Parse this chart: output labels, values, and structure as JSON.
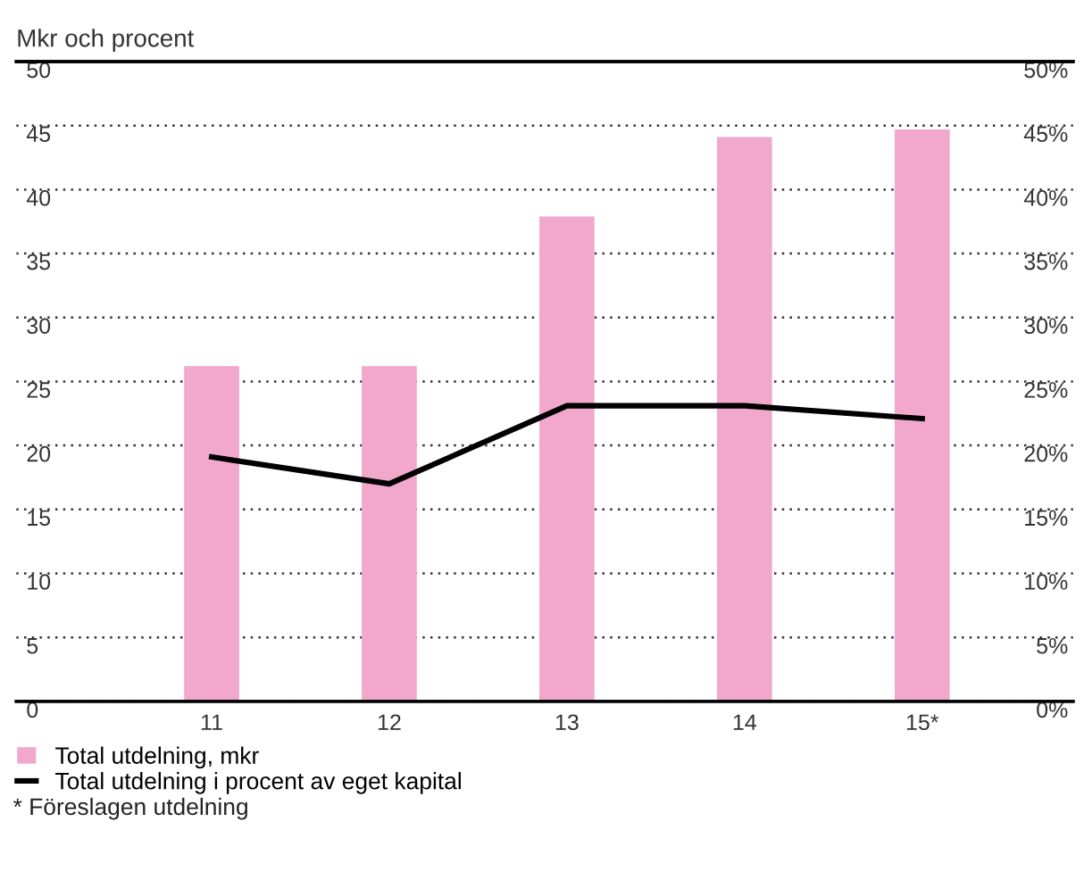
{
  "chart_data": {
    "type": "bar",
    "title": "Mkr och procent",
    "categories": [
      "11",
      "12",
      "13",
      "14",
      "15*"
    ],
    "series": [
      {
        "name": "Total utdelning, mkr",
        "color": "#f2a8cc",
        "values": [
          26.2,
          26.2,
          37.9,
          44.1,
          44.7
        ]
      },
      {
        "name": "Total utdelning i procent av eget kapital",
        "type": "line",
        "color": "#000000",
        "values": [
          19.1,
          17.0,
          23.1,
          23.1,
          22.1
        ]
      }
    ],
    "ylim": [
      0,
      50
    ],
    "yticks": [
      0,
      5,
      10,
      15,
      20,
      25,
      30,
      35,
      40,
      45,
      50
    ],
    "y2lim": [
      0,
      50
    ],
    "y2ticks": [
      {
        "value": 0,
        "label": "0%"
      },
      {
        "value": 5,
        "label": "5%"
      },
      {
        "value": 10,
        "label": "10%"
      },
      {
        "value": 15,
        "label": "15%"
      },
      {
        "value": 20,
        "label": "20%"
      },
      {
        "value": 25,
        "label": "25%"
      },
      {
        "value": 30,
        "label": "30%"
      },
      {
        "value": 35,
        "label": "35%"
      },
      {
        "value": 40,
        "label": "40%"
      },
      {
        "value": 45,
        "label": "45%"
      },
      {
        "value": 50,
        "label": "50%"
      }
    ],
    "grid": "y",
    "legend": "bottom",
    "annotations": [
      "* Föreslagen utdelning"
    ]
  }
}
